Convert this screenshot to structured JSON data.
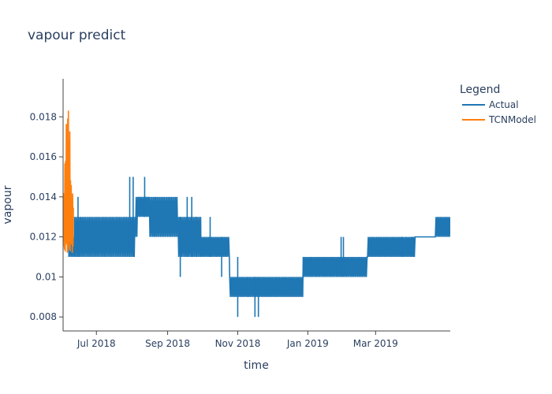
{
  "chart_data": {
    "type": "line",
    "title": "vapour predict",
    "xlabel": "time",
    "ylabel": "vapour",
    "x_axis_type": "date",
    "xlim": [
      "2018-06-02",
      "2019-05-05"
    ],
    "ylim": [
      0.0073,
      0.0199
    ],
    "x_ticks": [
      {
        "date": "2018-07-01",
        "label": "Jul 2018"
      },
      {
        "date": "2018-09-01",
        "label": "Sep 2018"
      },
      {
        "date": "2018-11-01",
        "label": "Nov 2018"
      },
      {
        "date": "2019-01-01",
        "label": "Jan 2019"
      },
      {
        "date": "2019-03-01",
        "label": "Mar 2019"
      }
    ],
    "y_ticks": [
      {
        "value": 0.008,
        "label": "0.008"
      },
      {
        "value": 0.01,
        "label": "0.01"
      },
      {
        "value": 0.012,
        "label": "0.012"
      },
      {
        "value": 0.014,
        "label": "0.014"
      },
      {
        "value": 0.016,
        "label": "0.016"
      },
      {
        "value": 0.018,
        "label": "0.018"
      }
    ],
    "grid": false,
    "legend": {
      "title": "Legend",
      "position": "top-right"
    },
    "series": [
      {
        "name": "Actual",
        "color": "#1f77b4",
        "style": "oscillating-band",
        "segments": [
          {
            "start": "2018-06-02",
            "end": "2018-06-07",
            "low": 0.012,
            "high": 0.014
          },
          {
            "start": "2018-06-07",
            "end": "2018-06-12",
            "low": 0.011,
            "high": 0.012
          },
          {
            "start": "2018-06-12",
            "end": "2018-06-17",
            "low": 0.011,
            "high": 0.013
          },
          {
            "start": "2018-06-17",
            "end": "2018-08-04",
            "low": 0.011,
            "high": 0.013
          },
          {
            "start": "2018-08-04",
            "end": "2018-08-06",
            "low": 0.012,
            "high": 0.014
          },
          {
            "start": "2018-08-06",
            "end": "2018-08-16",
            "low": 0.013,
            "high": 0.014
          },
          {
            "start": "2018-08-16",
            "end": "2018-08-21",
            "low": 0.012,
            "high": 0.014
          },
          {
            "start": "2018-08-21",
            "end": "2018-09-10",
            "low": 0.012,
            "high": 0.014
          },
          {
            "start": "2018-09-10",
            "end": "2018-09-30",
            "low": 0.011,
            "high": 0.013
          },
          {
            "start": "2018-09-30",
            "end": "2018-10-25",
            "low": 0.011,
            "high": 0.012
          },
          {
            "start": "2018-10-25",
            "end": "2018-11-10",
            "low": 0.009,
            "high": 0.01
          },
          {
            "start": "2018-11-10",
            "end": "2018-12-28",
            "low": 0.009,
            "high": 0.01
          },
          {
            "start": "2018-12-28",
            "end": "2019-02-22",
            "low": 0.01,
            "high": 0.011
          },
          {
            "start": "2019-02-22",
            "end": "2019-04-05",
            "low": 0.011,
            "high": 0.012
          },
          {
            "start": "2019-04-05",
            "end": "2019-04-22",
            "low": 0.012,
            "high": 0.012
          },
          {
            "start": "2019-04-22",
            "end": "2019-05-05",
            "low": 0.012,
            "high": 0.013
          }
        ],
        "spikes": [
          {
            "date": "2018-06-06",
            "high": 0.014
          },
          {
            "date": "2018-06-15",
            "high": 0.014
          },
          {
            "date": "2018-07-30",
            "high": 0.015
          },
          {
            "date": "2018-08-02",
            "high": 0.015
          },
          {
            "date": "2018-08-12",
            "high": 0.015
          },
          {
            "date": "2018-09-18",
            "high": 0.014
          },
          {
            "date": "2018-09-22",
            "high": 0.014
          },
          {
            "date": "2018-09-26",
            "high": 0.013
          },
          {
            "date": "2018-10-08",
            "high": 0.013
          },
          {
            "date": "2018-11-01",
            "low": 0.008,
            "high": 0.011
          },
          {
            "date": "2018-11-16",
            "low": 0.008
          },
          {
            "date": "2018-11-19",
            "low": 0.008
          },
          {
            "date": "2019-01-30",
            "high": 0.012
          },
          {
            "date": "2019-02-01",
            "high": 0.012
          },
          {
            "date": "2019-03-24",
            "high": 0.012
          },
          {
            "date": "2019-04-01",
            "high": 0.012
          },
          {
            "date": "2018-09-12",
            "low": 0.01
          },
          {
            "date": "2018-10-18",
            "low": 0.01
          },
          {
            "date": "2019-04-03",
            "low": 0.011
          }
        ]
      },
      {
        "name": "TCNModel",
        "color": "#ff7f0e",
        "style": "oscillating",
        "start": "2018-06-02",
        "end": "2018-06-11",
        "envelope_high_peak": 0.0192,
        "envelope_low": 0.0115
      }
    ]
  }
}
